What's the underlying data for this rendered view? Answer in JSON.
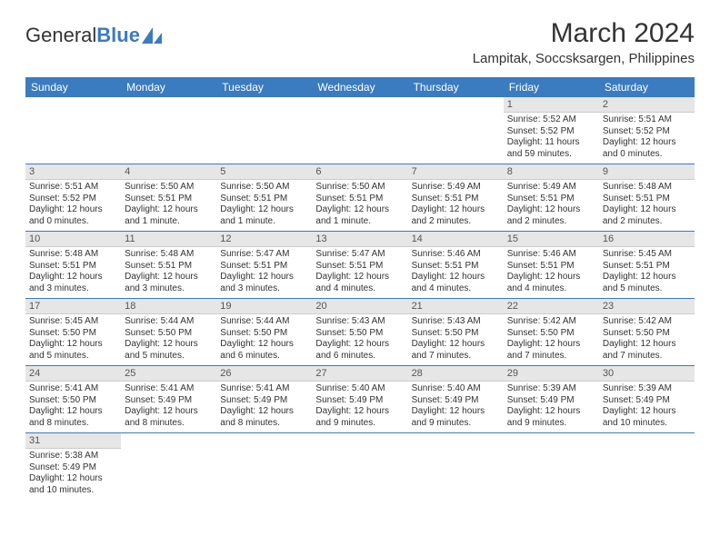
{
  "logo": {
    "text1": "General",
    "text2": "Blue"
  },
  "title": "March 2024",
  "location": "Lampitak, Soccsksargen, Philippines",
  "colors": {
    "header_bg": "#3b7bbf",
    "header_fg": "#ffffff",
    "daynum_bg": "#e6e6e6",
    "border": "#3b7bbf",
    "text": "#333333"
  },
  "day_headers": [
    "Sunday",
    "Monday",
    "Tuesday",
    "Wednesday",
    "Thursday",
    "Friday",
    "Saturday"
  ],
  "weeks": [
    [
      null,
      null,
      null,
      null,
      null,
      {
        "n": "1",
        "sr": "Sunrise: 5:52 AM",
        "ss": "Sunset: 5:52 PM",
        "dl1": "Daylight: 11 hours",
        "dl2": "and 59 minutes."
      },
      {
        "n": "2",
        "sr": "Sunrise: 5:51 AM",
        "ss": "Sunset: 5:52 PM",
        "dl1": "Daylight: 12 hours",
        "dl2": "and 0 minutes."
      }
    ],
    [
      {
        "n": "3",
        "sr": "Sunrise: 5:51 AM",
        "ss": "Sunset: 5:52 PM",
        "dl1": "Daylight: 12 hours",
        "dl2": "and 0 minutes."
      },
      {
        "n": "4",
        "sr": "Sunrise: 5:50 AM",
        "ss": "Sunset: 5:51 PM",
        "dl1": "Daylight: 12 hours",
        "dl2": "and 1 minute."
      },
      {
        "n": "5",
        "sr": "Sunrise: 5:50 AM",
        "ss": "Sunset: 5:51 PM",
        "dl1": "Daylight: 12 hours",
        "dl2": "and 1 minute."
      },
      {
        "n": "6",
        "sr": "Sunrise: 5:50 AM",
        "ss": "Sunset: 5:51 PM",
        "dl1": "Daylight: 12 hours",
        "dl2": "and 1 minute."
      },
      {
        "n": "7",
        "sr": "Sunrise: 5:49 AM",
        "ss": "Sunset: 5:51 PM",
        "dl1": "Daylight: 12 hours",
        "dl2": "and 2 minutes."
      },
      {
        "n": "8",
        "sr": "Sunrise: 5:49 AM",
        "ss": "Sunset: 5:51 PM",
        "dl1": "Daylight: 12 hours",
        "dl2": "and 2 minutes."
      },
      {
        "n": "9",
        "sr": "Sunrise: 5:48 AM",
        "ss": "Sunset: 5:51 PM",
        "dl1": "Daylight: 12 hours",
        "dl2": "and 2 minutes."
      }
    ],
    [
      {
        "n": "10",
        "sr": "Sunrise: 5:48 AM",
        "ss": "Sunset: 5:51 PM",
        "dl1": "Daylight: 12 hours",
        "dl2": "and 3 minutes."
      },
      {
        "n": "11",
        "sr": "Sunrise: 5:48 AM",
        "ss": "Sunset: 5:51 PM",
        "dl1": "Daylight: 12 hours",
        "dl2": "and 3 minutes."
      },
      {
        "n": "12",
        "sr": "Sunrise: 5:47 AM",
        "ss": "Sunset: 5:51 PM",
        "dl1": "Daylight: 12 hours",
        "dl2": "and 3 minutes."
      },
      {
        "n": "13",
        "sr": "Sunrise: 5:47 AM",
        "ss": "Sunset: 5:51 PM",
        "dl1": "Daylight: 12 hours",
        "dl2": "and 4 minutes."
      },
      {
        "n": "14",
        "sr": "Sunrise: 5:46 AM",
        "ss": "Sunset: 5:51 PM",
        "dl1": "Daylight: 12 hours",
        "dl2": "and 4 minutes."
      },
      {
        "n": "15",
        "sr": "Sunrise: 5:46 AM",
        "ss": "Sunset: 5:51 PM",
        "dl1": "Daylight: 12 hours",
        "dl2": "and 4 minutes."
      },
      {
        "n": "16",
        "sr": "Sunrise: 5:45 AM",
        "ss": "Sunset: 5:51 PM",
        "dl1": "Daylight: 12 hours",
        "dl2": "and 5 minutes."
      }
    ],
    [
      {
        "n": "17",
        "sr": "Sunrise: 5:45 AM",
        "ss": "Sunset: 5:50 PM",
        "dl1": "Daylight: 12 hours",
        "dl2": "and 5 minutes."
      },
      {
        "n": "18",
        "sr": "Sunrise: 5:44 AM",
        "ss": "Sunset: 5:50 PM",
        "dl1": "Daylight: 12 hours",
        "dl2": "and 5 minutes."
      },
      {
        "n": "19",
        "sr": "Sunrise: 5:44 AM",
        "ss": "Sunset: 5:50 PM",
        "dl1": "Daylight: 12 hours",
        "dl2": "and 6 minutes."
      },
      {
        "n": "20",
        "sr": "Sunrise: 5:43 AM",
        "ss": "Sunset: 5:50 PM",
        "dl1": "Daylight: 12 hours",
        "dl2": "and 6 minutes."
      },
      {
        "n": "21",
        "sr": "Sunrise: 5:43 AM",
        "ss": "Sunset: 5:50 PM",
        "dl1": "Daylight: 12 hours",
        "dl2": "and 7 minutes."
      },
      {
        "n": "22",
        "sr": "Sunrise: 5:42 AM",
        "ss": "Sunset: 5:50 PM",
        "dl1": "Daylight: 12 hours",
        "dl2": "and 7 minutes."
      },
      {
        "n": "23",
        "sr": "Sunrise: 5:42 AM",
        "ss": "Sunset: 5:50 PM",
        "dl1": "Daylight: 12 hours",
        "dl2": "and 7 minutes."
      }
    ],
    [
      {
        "n": "24",
        "sr": "Sunrise: 5:41 AM",
        "ss": "Sunset: 5:50 PM",
        "dl1": "Daylight: 12 hours",
        "dl2": "and 8 minutes."
      },
      {
        "n": "25",
        "sr": "Sunrise: 5:41 AM",
        "ss": "Sunset: 5:49 PM",
        "dl1": "Daylight: 12 hours",
        "dl2": "and 8 minutes."
      },
      {
        "n": "26",
        "sr": "Sunrise: 5:41 AM",
        "ss": "Sunset: 5:49 PM",
        "dl1": "Daylight: 12 hours",
        "dl2": "and 8 minutes."
      },
      {
        "n": "27",
        "sr": "Sunrise: 5:40 AM",
        "ss": "Sunset: 5:49 PM",
        "dl1": "Daylight: 12 hours",
        "dl2": "and 9 minutes."
      },
      {
        "n": "28",
        "sr": "Sunrise: 5:40 AM",
        "ss": "Sunset: 5:49 PM",
        "dl1": "Daylight: 12 hours",
        "dl2": "and 9 minutes."
      },
      {
        "n": "29",
        "sr": "Sunrise: 5:39 AM",
        "ss": "Sunset: 5:49 PM",
        "dl1": "Daylight: 12 hours",
        "dl2": "and 9 minutes."
      },
      {
        "n": "30",
        "sr": "Sunrise: 5:39 AM",
        "ss": "Sunset: 5:49 PM",
        "dl1": "Daylight: 12 hours",
        "dl2": "and 10 minutes."
      }
    ],
    [
      {
        "n": "31",
        "sr": "Sunrise: 5:38 AM",
        "ss": "Sunset: 5:49 PM",
        "dl1": "Daylight: 12 hours",
        "dl2": "and 10 minutes."
      },
      null,
      null,
      null,
      null,
      null,
      null
    ]
  ]
}
